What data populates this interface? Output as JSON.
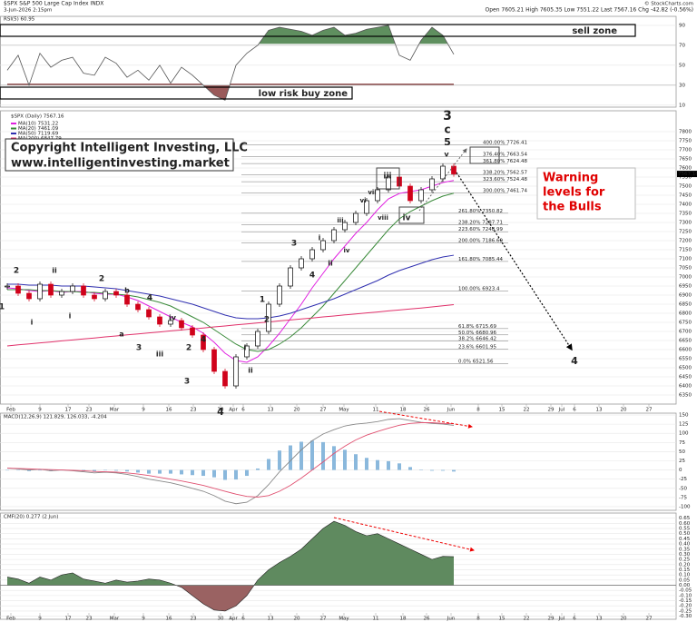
{
  "header": {
    "symbol": "$SPX S&P 500 Large Cap Index INDX",
    "date": "3-Jun-2026 2:15pm",
    "quote": "Open 7605.21 High 7605.35 Low 7551.22 Last 7567.16 Chg -42.82 (-0.56%)",
    "source": "© StockCharts.com"
  },
  "zones": {
    "sell": "sell zone",
    "buy": "low risk buy zone"
  },
  "copyright": [
    "Copyright Intelligent Investing, LLC",
    "www.intelligentinvesting.market"
  ],
  "warning": [
    "Warning",
    "levels for",
    "the Bulls"
  ],
  "xtick_labels": [
    "Feb",
    "9",
    "17",
    "23",
    "Mar",
    "9",
    "16",
    "23",
    "30",
    "Apr",
    "6",
    "13",
    "20",
    "27",
    "May",
    "11",
    "18",
    "26",
    "Jun",
    "8",
    "15",
    "22",
    "29",
    "Jul",
    "6",
    "13",
    "20",
    "27"
  ],
  "annotations": [
    {
      "text": "3",
      "color": "#000000"
    },
    {
      "text": "c",
      "color": "#e00000"
    },
    {
      "text": "5",
      "color": "#1a9a1a"
    },
    {
      "text": "v",
      "color": "#555555"
    },
    {
      "text": "iii",
      "color": "#000000"
    },
    {
      "text": "iv",
      "color": "#000000"
    },
    {
      "text": "vii",
      "color": "#1010c0"
    },
    {
      "text": "vi",
      "color": "#1010c0"
    },
    {
      "text": "viii",
      "color": "#1010c0"
    },
    {
      "text": "iii",
      "color": "#1010c0"
    },
    {
      "text": "iv",
      "color": "#1010c0"
    },
    {
      "text": "i",
      "color": "#1010c0"
    },
    {
      "text": "ii",
      "color": "#1010c0"
    },
    {
      "text": "3",
      "color": "#e08a00"
    },
    {
      "text": "4",
      "color": "#e08a00"
    },
    {
      "text": "1",
      "color": "#e08a00"
    },
    {
      "text": "2",
      "color": "#e08a00"
    },
    {
      "text": "i",
      "color": "#000000"
    },
    {
      "text": "ii",
      "color": "#000000"
    },
    {
      "text": "4",
      "color": "#000000"
    },
    {
      "text": "4",
      "color": "#1a9a1a"
    },
    {
      "text": "2",
      "color": "#e08a00"
    },
    {
      "text": "ii",
      "color": "#1010c0"
    },
    {
      "text": "1",
      "color": "#e08a00"
    },
    {
      "text": "i",
      "color": "#1010c0"
    },
    {
      "text": "2",
      "color": "#d010d0"
    },
    {
      "text": "i",
      "color": "#d010d0"
    },
    {
      "text": "b",
      "color": "#1010c0"
    },
    {
      "text": "a",
      "color": "#1010c0"
    },
    {
      "text": "3",
      "color": "#d010d0"
    },
    {
      "text": "iii",
      "color": "#1010c0"
    },
    {
      "text": "4",
      "color": "#d010d0"
    },
    {
      "text": "iv",
      "color": "#1010c0"
    },
    {
      "text": "2",
      "color": "#e08a00"
    },
    {
      "text": "4",
      "color": "#e08a00"
    },
    {
      "text": "3",
      "color": "#e08a00"
    }
  ],
  "chart_data": [
    {
      "type": "candlestick",
      "title": "$SPX (Daily) 7567.16",
      "color_up": "#000000",
      "color_down": "#d0021b",
      "values": [
        6950,
        6910,
        6880,
        6960,
        6900,
        6920,
        6950,
        6900,
        6880,
        6920,
        6900,
        6850,
        6820,
        6780,
        6740,
        6760,
        6720,
        6680,
        6600,
        6480,
        6400,
        6560,
        6620,
        6700,
        6850,
        6950,
        7050,
        7100,
        7150,
        7200,
        7260,
        7300,
        7350,
        7420,
        7480,
        7550,
        7500,
        7420,
        7480,
        7540,
        7610,
        7567.16
      ],
      "series": [
        {
          "name": "MA(10) 7531.22",
          "color": "#e020e0",
          "values": [
            6940,
            6935,
            6925,
            6920,
            6925,
            6915,
            6920,
            6920,
            6910,
            6905,
            6905,
            6890,
            6870,
            6840,
            6810,
            6780,
            6750,
            6725,
            6690,
            6640,
            6580,
            6540,
            6530,
            6560,
            6620,
            6690,
            6770,
            6850,
            6940,
            7020,
            7100,
            7170,
            7240,
            7300,
            7370,
            7430,
            7460,
            7470,
            7480,
            7500,
            7520,
            7531.22
          ]
        },
        {
          "name": "MA(20) 7461.09",
          "color": "#3a8a3a",
          "values": [
            6930,
            6930,
            6930,
            6925,
            6925,
            6920,
            6920,
            6915,
            6915,
            6910,
            6905,
            6900,
            6890,
            6875,
            6860,
            6840,
            6810,
            6780,
            6750,
            6710,
            6670,
            6630,
            6600,
            6590,
            6600,
            6630,
            6670,
            6720,
            6780,
            6840,
            6910,
            6980,
            7050,
            7120,
            7190,
            7260,
            7320,
            7360,
            7390,
            7420,
            7445,
            7461.09
          ]
        },
        {
          "name": "MA(50) 7119.69",
          "color": "#3030b0",
          "values": [
            6960,
            6960,
            6955,
            6955,
            6955,
            6950,
            6950,
            6950,
            6945,
            6940,
            6935,
            6925,
            6915,
            6905,
            6895,
            6880,
            6865,
            6850,
            6830,
            6810,
            6790,
            6775,
            6770,
            6770,
            6775,
            6785,
            6800,
            6820,
            6840,
            6860,
            6880,
            6905,
            6930,
            6955,
            6980,
            7010,
            7035,
            7055,
            7075,
            7095,
            7110,
            7119.69
          ]
        },
        {
          "name": "MA(200) 6847.79",
          "color": "#e0306a",
          "values": [
            6620,
            6626,
            6631,
            6637,
            6642,
            6648,
            6653,
            6659,
            6664,
            6670,
            6675,
            6681,
            6686,
            6692,
            6697,
            6703,
            6708,
            6714,
            6719,
            6725,
            6730,
            6736,
            6741,
            6747,
            6752,
            6758,
            6763,
            6769,
            6774,
            6780,
            6785,
            6791,
            6796,
            6802,
            6807,
            6813,
            6818,
            6824,
            6829,
            6835,
            6841,
            6847.79
          ]
        }
      ],
      "fib_levels": [
        {
          "label": "400.00%",
          "value": 7726.41
        },
        {
          "label": "376.40%",
          "value": 7663.54
        },
        {
          "label": "361.80%",
          "value": 7624.48
        },
        {
          "label": "338.20%",
          "value": 7562.57
        },
        {
          "label": "323.60%",
          "value": 7524.48
        },
        {
          "label": "300.00%",
          "value": 7461.74
        },
        {
          "label": "261.80%",
          "value": 7350.82
        },
        {
          "label": "238.20%",
          "value": 7287.71
        },
        {
          "label": "223.60%",
          "value": 7248.99
        },
        {
          "label": "200.00%",
          "value": 7186.69
        },
        {
          "label": "161.80%",
          "value": 7085.44
        },
        {
          "label": "100.00%",
          "value": 6923.4
        },
        {
          "label": "61.8%",
          "value": 6715.69
        },
        {
          "label": "50.0%",
          "value": 6680.96
        },
        {
          "label": "38.2%",
          "value": 6646.42
        },
        {
          "label": "23.6%",
          "value": 6601.95
        },
        {
          "label": "0.0%",
          "value": 6521.56
        }
      ],
      "ylim": [
        6300,
        7915
      ],
      "yticks": [
        6350,
        6400,
        6450,
        6500,
        6550,
        6600,
        6650,
        6700,
        6750,
        6800,
        6850,
        6900,
        6950,
        7000,
        7050,
        7100,
        7150,
        7200,
        7250,
        7300,
        7350,
        7400,
        7450,
        7500,
        7550,
        7600,
        7650,
        7700,
        7750,
        7800
      ],
      "grid": true
    },
    {
      "type": "line",
      "title": "RSI(5) 60.95",
      "color": "#555555",
      "fill_high": "#5f8f5f",
      "fill_low": "#9a5a5a",
      "high_level": 70,
      "low_level": 30,
      "values": [
        45,
        60,
        30,
        62,
        48,
        55,
        58,
        42,
        40,
        58,
        52,
        38,
        45,
        35,
        50,
        32,
        48,
        40,
        30,
        20,
        15,
        50,
        62,
        70,
        85,
        88,
        86,
        84,
        80,
        85,
        88,
        80,
        82,
        86,
        88,
        90,
        60,
        55,
        75,
        88,
        80,
        60.95
      ],
      "ylim": [
        8,
        99
      ],
      "yticks": [
        10,
        30,
        50,
        70,
        90
      ]
    },
    {
      "type": "bar",
      "title": "MACD(12,26,9) 121.829, 126.033, -4.204",
      "color": "#8ab8dc",
      "values": [
        0,
        -1,
        -3,
        0,
        -3,
        0,
        -1,
        -3,
        -4,
        -1,
        -2,
        -4,
        -7,
        -10,
        -10,
        -10,
        -12,
        -14,
        -16,
        -20,
        -27,
        -26,
        -16,
        4,
        30,
        53,
        67,
        77,
        80,
        76,
        65,
        55,
        43,
        33,
        27,
        24,
        18,
        8,
        1,
        -2,
        -2,
        -4.204
      ],
      "series": [
        {
          "color": "#888888",
          "values": [
            5,
            3,
            0,
            2,
            -2,
            0,
            -2,
            -5,
            -8,
            -6,
            -8,
            -12,
            -18,
            -25,
            -30,
            -35,
            -42,
            -50,
            -58,
            -70,
            -85,
            -92,
            -88,
            -70,
            -40,
            -5,
            25,
            55,
            80,
            98,
            110,
            120,
            125,
            128,
            132,
            138,
            140,
            135,
            130,
            127,
            125,
            121.829
          ]
        },
        {
          "color": "#e05070",
          "values": [
            5,
            4,
            3,
            2,
            1,
            0,
            -1,
            -2,
            -4,
            -5,
            -6,
            -8,
            -11,
            -15,
            -20,
            -25,
            -30,
            -36,
            -42,
            -50,
            -58,
            -66,
            -72,
            -74,
            -70,
            -58,
            -42,
            -22,
            0,
            22,
            45,
            65,
            82,
            95,
            105,
            114,
            122,
            127,
            129,
            129,
            127,
            126.033
          ]
        }
      ],
      "ylim": [
        -110,
        155
      ],
      "yticks": [
        -100,
        -75,
        -50,
        -25,
        0,
        25,
        50,
        75,
        100,
        125,
        150
      ]
    },
    {
      "type": "area",
      "title": "CMF(20) 0.277 (2 Jun)",
      "color": "#222222",
      "fill_pos": "#5f8a5f",
      "fill_neg": "#9a6262",
      "values": [
        0.08,
        0.06,
        0.02,
        0.08,
        0.05,
        0.1,
        0.12,
        0.06,
        0.04,
        0.02,
        0.05,
        0.03,
        0.04,
        0.06,
        0.05,
        0.02,
        -0.02,
        -0.1,
        -0.18,
        -0.24,
        -0.25,
        -0.2,
        -0.1,
        0.05,
        0.15,
        0.22,
        0.28,
        0.35,
        0.45,
        0.55,
        0.62,
        0.58,
        0.52,
        0.48,
        0.5,
        0.45,
        0.4,
        0.35,
        0.3,
        0.25,
        0.28,
        0.277
      ],
      "ylim": [
        -0.33,
        0.7
      ],
      "yticks": [
        {
          "value": 0.65,
          "label": "0.65"
        },
        {
          "value": 0.6,
          "label": "0.60"
        },
        {
          "value": 0.55,
          "label": "0.55"
        },
        {
          "value": 0.5,
          "label": "0.50"
        },
        {
          "value": 0.45,
          "label": "0.45"
        },
        {
          "value": 0.4,
          "label": "0.40"
        },
        {
          "value": 0.35,
          "label": "0.35"
        },
        {
          "value": 0.3,
          "label": "0.30"
        },
        {
          "value": 0.25,
          "label": "0.25"
        },
        {
          "value": 0.2,
          "label": "0.20"
        },
        {
          "value": 0.15,
          "label": "0.15"
        },
        {
          "value": 0.1,
          "label": "0.10"
        },
        {
          "value": 0.05,
          "label": "0.05"
        },
        {
          "value": 0,
          "label": "0.00"
        },
        {
          "value": -0.05,
          "label": "-0.05"
        },
        {
          "value": -0.1,
          "label": "-0.10"
        },
        {
          "value": -0.15,
          "label": "-0.15"
        },
        {
          "value": -0.2,
          "label": "-0.20"
        },
        {
          "value": -0.25,
          "label": "-0.25"
        },
        {
          "value": -0.3,
          "label": "-0.30"
        }
      ]
    }
  ]
}
